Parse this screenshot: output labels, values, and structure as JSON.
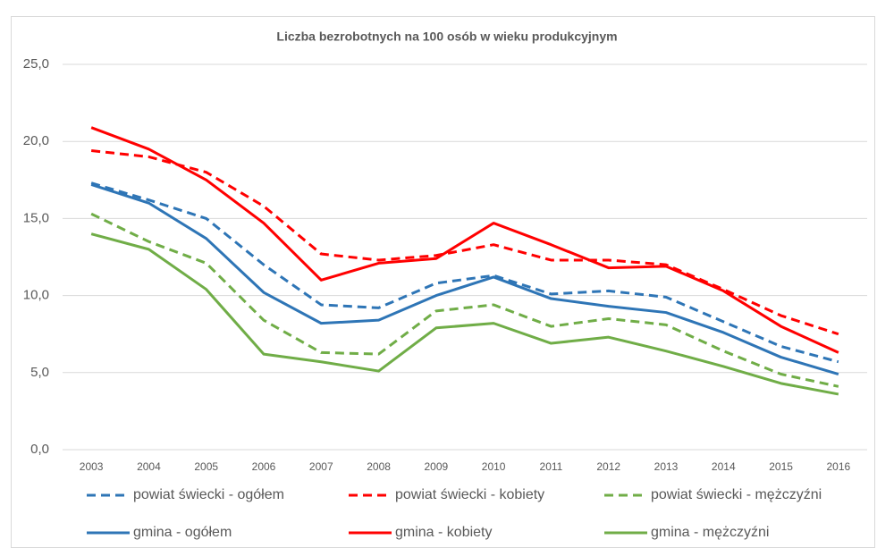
{
  "chart_data": {
    "type": "line",
    "title": "Liczba bezrobotnych na 100 osób w wieku produkcyjnym",
    "categories": [
      "2003",
      "2004",
      "2005",
      "2006",
      "2007",
      "2008",
      "2009",
      "2010",
      "2011",
      "2012",
      "2013",
      "2014",
      "2015",
      "2016"
    ],
    "ylim": [
      0,
      25
    ],
    "yticks": [
      {
        "value": 0,
        "label": "0,0"
      },
      {
        "value": 5,
        "label": "5,0"
      },
      {
        "value": 10,
        "label": "10,0"
      },
      {
        "value": 15,
        "label": "15,0"
      },
      {
        "value": 20,
        "label": "20,0"
      },
      {
        "value": 25,
        "label": "25,0"
      }
    ],
    "grid": true,
    "legend": "bottom",
    "series": [
      {
        "name": "powiat świecki - ogółem",
        "color": "#2e75b6",
        "dashed": true,
        "values": [
          17.3,
          16.2,
          15.0,
          12.0,
          9.4,
          9.2,
          10.8,
          11.3,
          10.1,
          10.3,
          9.9,
          8.3,
          6.7,
          5.7
        ]
      },
      {
        "name": "powiat świecki - kobiety",
        "color": "#ff0000",
        "dashed": true,
        "values": [
          19.4,
          19.0,
          18.0,
          15.8,
          12.7,
          12.3,
          12.6,
          13.3,
          12.3,
          12.3,
          12.0,
          10.4,
          8.7,
          7.5
        ]
      },
      {
        "name": "powiat świecki - mężczyźni",
        "color": "#70ad47",
        "dashed": true,
        "values": [
          15.3,
          13.5,
          12.1,
          8.4,
          6.3,
          6.2,
          9.0,
          9.4,
          8.0,
          8.5,
          8.1,
          6.4,
          4.9,
          4.1
        ]
      },
      {
        "name": "gmina - ogółem",
        "color": "#2e75b6",
        "dashed": false,
        "values": [
          17.2,
          16.0,
          13.7,
          10.2,
          8.2,
          8.4,
          10.0,
          11.2,
          9.8,
          9.3,
          8.9,
          7.6,
          6.0,
          4.9
        ]
      },
      {
        "name": "gmina - kobiety",
        "color": "#ff0000",
        "dashed": false,
        "values": [
          20.9,
          19.5,
          17.5,
          14.7,
          11.0,
          12.1,
          12.4,
          14.7,
          13.3,
          11.8,
          11.9,
          10.3,
          8.0,
          6.3
        ]
      },
      {
        "name": "gmina - mężczyźni",
        "color": "#70ad47",
        "dashed": false,
        "values": [
          14.0,
          13.0,
          10.4,
          6.2,
          5.7,
          5.1,
          7.9,
          8.2,
          6.9,
          7.3,
          6.4,
          5.4,
          4.3,
          3.6
        ]
      }
    ]
  }
}
